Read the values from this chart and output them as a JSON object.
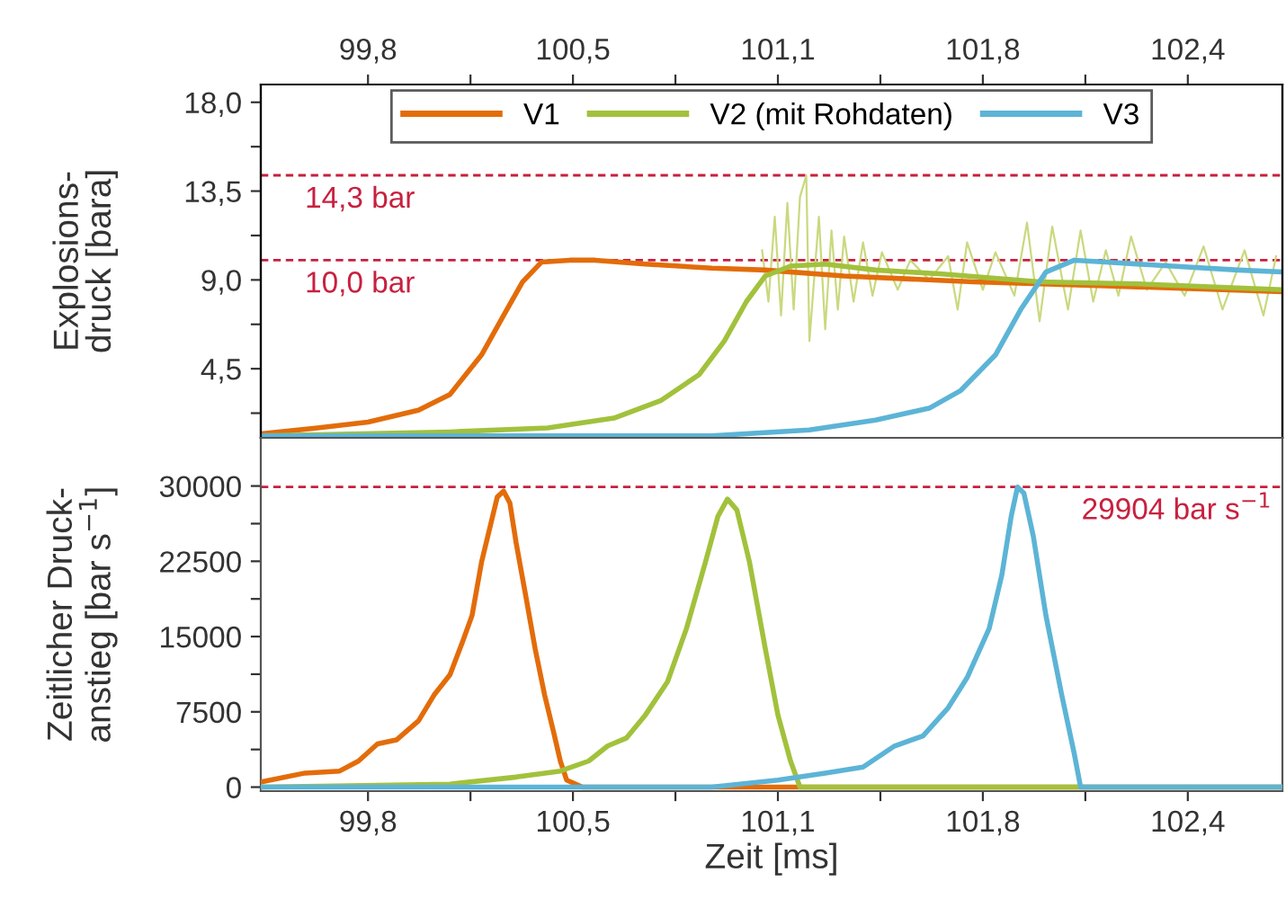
{
  "chart_data": [
    {
      "type": "line",
      "ylabel": "Explosions-\ndruck [bara]",
      "legend": "top",
      "xlim": [
        99.46,
        102.7
      ],
      "ylim": [
        1.0,
        18.9
      ],
      "tick_labels": "y",
      "x2lim": [
        99.46,
        102.7
      ],
      "x2ticks": [
        {
          "value": 99.8,
          "label": "99,8"
        },
        {
          "value": 100.125,
          "label": null
        },
        {
          "value": 100.45,
          "label": "100,5"
        },
        {
          "value": 100.775,
          "label": null
        },
        {
          "value": 101.1,
          "label": "101,1"
        },
        {
          "value": 101.425,
          "label": null
        },
        {
          "value": 101.75,
          "label": "101,8"
        },
        {
          "value": 102.075,
          "label": null
        },
        {
          "value": 102.4,
          "label": "102,4"
        }
      ],
      "xticks": [
        {
          "value": 99.8,
          "label": null
        },
        {
          "value": 100.125,
          "label": null
        },
        {
          "value": 100.45,
          "label": null
        },
        {
          "value": 100.775,
          "label": null
        },
        {
          "value": 101.1,
          "label": null
        },
        {
          "value": 101.425,
          "label": null
        },
        {
          "value": 101.75,
          "label": null
        },
        {
          "value": 102.075,
          "label": null
        },
        {
          "value": 102.4,
          "label": null
        }
      ],
      "yticks": [
        {
          "value": 2.25,
          "label": null
        },
        {
          "value": 4.5,
          "label": "4,5"
        },
        {
          "value": 6.75,
          "label": null
        },
        {
          "value": 9.0,
          "label": "9,0"
        },
        {
          "value": 11.25,
          "label": null
        },
        {
          "value": 13.5,
          "label": "13,5"
        },
        {
          "value": 15.75,
          "label": null
        },
        {
          "value": 18.0,
          "label": "18,0"
        }
      ],
      "ref_lines": [
        {
          "axis": "y",
          "value": 14.3,
          "label": "14,3 bar",
          "color": "#c8203f",
          "line_style": "dashed"
        },
        {
          "axis": "y",
          "value": 10.0,
          "label": "10,0 bar",
          "color": "#c8203f",
          "line_style": "dashed"
        }
      ],
      "series": [
        {
          "name": "V1",
          "color": "#e36c0a",
          "x": [
            99.46,
            99.64,
            99.8,
            99.96,
            100.06,
            100.16,
            100.23,
            100.29,
            100.35,
            100.44,
            100.52,
            100.68,
            100.89,
            101.06,
            101.31,
            101.72,
            102.14,
            102.7
          ],
          "values": [
            1.2,
            1.5,
            1.8,
            2.4,
            3.2,
            5.2,
            7.2,
            8.9,
            9.9,
            10.0,
            10.0,
            9.8,
            9.6,
            9.5,
            9.2,
            8.9,
            8.7,
            8.4
          ]
        },
        {
          "color": "#c9d97f",
          "x": [
            101.05,
            101.07,
            101.09,
            101.11,
            101.13,
            101.15,
            101.17,
            101.19,
            101.2,
            101.23,
            101.25,
            101.27,
            101.29,
            101.31,
            101.34,
            101.37,
            101.4,
            101.43,
            101.48,
            101.52,
            101.58,
            101.64,
            101.67,
            101.7,
            101.75,
            101.79,
            101.85,
            101.89,
            101.93,
            101.97,
            102.02,
            102.06,
            102.1,
            102.14,
            102.18,
            102.22,
            102.27,
            102.33,
            102.39,
            102.45,
            102.51,
            102.58,
            102.64,
            102.68
          ],
          "values": [
            10.5,
            7.9,
            12.2,
            7.2,
            12.9,
            7.5,
            13.2,
            14.3,
            5.9,
            12.2,
            6.5,
            11.5,
            7.5,
            11.2,
            7.9,
            10.9,
            8.2,
            10.4,
            8.5,
            10.0,
            9.0,
            10.2,
            7.5,
            10.9,
            8.5,
            10.4,
            8.2,
            11.9,
            6.9,
            11.7,
            7.5,
            11.5,
            7.9,
            10.5,
            8.2,
            11.2,
            8.5,
            9.9,
            8.2,
            10.7,
            7.5,
            10.5,
            7.2,
            10.2
          ]
        },
        {
          "name": "V2 (mit Rohdaten)",
          "color": "#a2c13c",
          "x": [
            99.46,
            100.06,
            100.37,
            100.58,
            100.73,
            100.85,
            100.93,
            101.0,
            101.06,
            101.14,
            101.25,
            101.41,
            101.62,
            101.93,
            102.24,
            102.7
          ],
          "values": [
            1.1,
            1.3,
            1.5,
            2.0,
            2.9,
            4.2,
            5.9,
            7.9,
            9.2,
            9.7,
            9.8,
            9.5,
            9.3,
            8.9,
            8.8,
            8.5
          ]
        },
        {
          "name": "V3",
          "color": "#5cb4d6",
          "x": [
            99.46,
            100.89,
            101.2,
            101.41,
            101.58,
            101.68,
            101.79,
            101.87,
            101.95,
            102.04,
            102.14,
            102.35,
            102.56,
            102.7
          ],
          "values": [
            1.1,
            1.1,
            1.4,
            1.9,
            2.5,
            3.4,
            5.2,
            7.5,
            9.4,
            10.0,
            9.9,
            9.7,
            9.5,
            9.4
          ]
        }
      ]
    },
    {
      "type": "line",
      "xlabel": "Zeit [ms]",
      "ylabel": "Zeitlicher Druck-\nanstieg [bar s$^{−1}$]",
      "xlim": [
        99.46,
        102.7
      ],
      "ylim": [
        -400,
        34800
      ],
      "xticks": [
        {
          "value": 99.8,
          "label": "99,8"
        },
        {
          "value": 100.125,
          "label": null
        },
        {
          "value": 100.45,
          "label": "100,5"
        },
        {
          "value": 100.775,
          "label": null
        },
        {
          "value": 101.1,
          "label": "101,1"
        },
        {
          "value": 101.425,
          "label": null
        },
        {
          "value": 101.75,
          "label": "101,8"
        },
        {
          "value": 102.075,
          "label": null
        },
        {
          "value": 102.4,
          "label": "102,4"
        }
      ],
      "yticks": [
        0,
        {
          "value": 3750,
          "label": null
        },
        7500,
        {
          "value": 11250,
          "label": null
        },
        15000,
        {
          "value": 18750,
          "label": null
        },
        22500,
        {
          "value": 26250,
          "label": null
        },
        30000
      ],
      "ref_lines": [
        {
          "axis": "y",
          "value": 29904,
          "label": "29904 bar s$^{−1}$",
          "color": "#c8203f",
          "line_style": "dashed"
        }
      ],
      "series": [
        {
          "color": "#e36c0a",
          "x": [
            99.46,
            99.6,
            99.71,
            99.77,
            99.83,
            99.89,
            99.96,
            100.01,
            100.06,
            100.1,
            100.13,
            100.16,
            100.19,
            100.21,
            100.23,
            100.25,
            100.27,
            100.3,
            100.33,
            100.36,
            100.39,
            100.41,
            100.43,
            100.48,
            100.56,
            100.89,
            101.52,
            102.7
          ],
          "values": [
            500,
            1400,
            1600,
            2600,
            4300,
            4700,
            6600,
            9200,
            11200,
            14500,
            17100,
            22400,
            26300,
            28900,
            29500,
            28300,
            24300,
            19100,
            13800,
            9200,
            5300,
            2600,
            700,
            0,
            0,
            0,
            0,
            0
          ]
        },
        {
          "color": "#a2c13c",
          "x": [
            99.46,
            100.06,
            100.27,
            100.41,
            100.5,
            100.56,
            100.62,
            100.68,
            100.75,
            100.81,
            100.87,
            100.91,
            100.94,
            100.97,
            101.01,
            101.06,
            101.1,
            101.14,
            101.17,
            101.31,
            102.7
          ],
          "values": [
            0,
            300,
            1000,
            1600,
            2600,
            4100,
            4900,
            7200,
            10500,
            15800,
            22400,
            27000,
            28700,
            27600,
            22400,
            13800,
            7200,
            2600,
            0,
            0,
            0
          ]
        },
        {
          "color": "#5cb4d6",
          "x": [
            99.46,
            100.89,
            101.1,
            101.25,
            101.37,
            101.47,
            101.56,
            101.64,
            101.7,
            101.77,
            101.81,
            101.84,
            101.86,
            101.88,
            101.91,
            101.95,
            102.0,
            102.04,
            102.06,
            102.14,
            102.7
          ],
          "values": [
            0,
            0,
            700,
            1400,
            2000,
            4100,
            5100,
            7900,
            10900,
            15800,
            21100,
            27000,
            29900,
            29300,
            25000,
            17100,
            9200,
            3300,
            0,
            0,
            0
          ]
        }
      ]
    }
  ]
}
